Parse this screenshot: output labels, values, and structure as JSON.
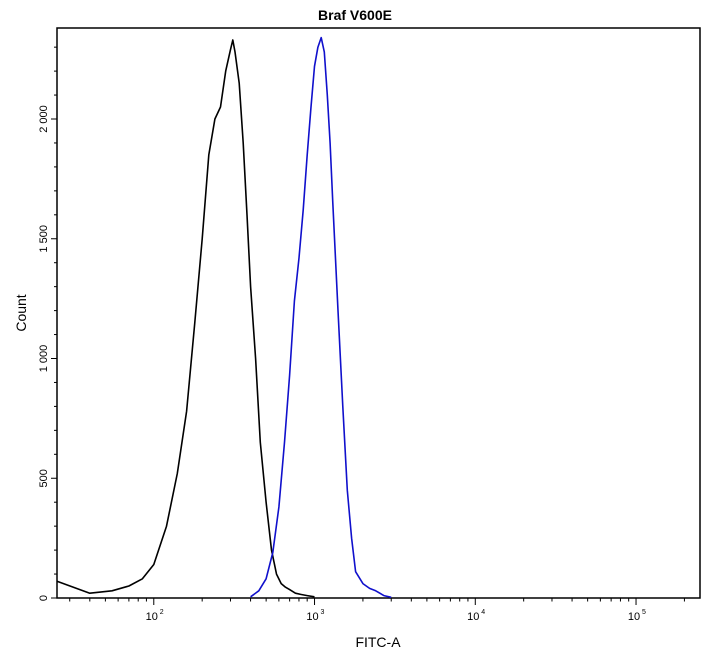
{
  "chart_data": {
    "type": "line",
    "title": "Braf V600E",
    "xlabel": "FITC-A",
    "ylabel": "Count",
    "xscale": "log",
    "xlim": [
      25,
      250000
    ],
    "ylim": [
      0,
      2380
    ],
    "y_ticks": [
      {
        "value": 0,
        "label": "0"
      },
      {
        "value": 500,
        "label": "500"
      },
      {
        "value": 1000,
        "label": "1 000"
      },
      {
        "value": 1500,
        "label": "1 500"
      },
      {
        "value": 2000,
        "label": "2 000"
      }
    ],
    "x_ticks": [
      {
        "value": 100,
        "base": "10",
        "exp": "2"
      },
      {
        "value": 1000,
        "base": "10",
        "exp": "3"
      },
      {
        "value": 10000,
        "base": "10",
        "exp": "4"
      },
      {
        "value": 100000,
        "base": "10",
        "exp": "5"
      }
    ],
    "grid": false,
    "series": [
      {
        "color": "#000000",
        "x": [
          25,
          40,
          55,
          70,
          85,
          100,
          120,
          140,
          160,
          180,
          200,
          220,
          240,
          260,
          280,
          300,
          310,
          320,
          340,
          360,
          380,
          400,
          430,
          460,
          500,
          540,
          580,
          620,
          660,
          700,
          760,
          820,
          900,
          1000
        ],
        "y": [
          70,
          20,
          30,
          50,
          80,
          140,
          300,
          520,
          780,
          1150,
          1500,
          1850,
          2000,
          2050,
          2200,
          2290,
          2330,
          2280,
          2150,
          1900,
          1600,
          1300,
          1000,
          650,
          400,
          200,
          100,
          60,
          45,
          35,
          20,
          15,
          10,
          5
        ]
      },
      {
        "color": "#1010cc",
        "x": [
          400,
          450,
          500,
          550,
          600,
          650,
          700,
          750,
          800,
          850,
          900,
          950,
          1000,
          1050,
          1100,
          1150,
          1200,
          1250,
          1300,
          1400,
          1500,
          1600,
          1700,
          1800,
          2000,
          2200,
          2400,
          2700,
          3000
        ],
        "y": [
          5,
          30,
          80,
          190,
          380,
          650,
          930,
          1240,
          1420,
          1620,
          1850,
          2050,
          2220,
          2300,
          2340,
          2280,
          2100,
          1900,
          1650,
          1200,
          800,
          450,
          250,
          110,
          60,
          40,
          30,
          10,
          3
        ]
      }
    ]
  }
}
